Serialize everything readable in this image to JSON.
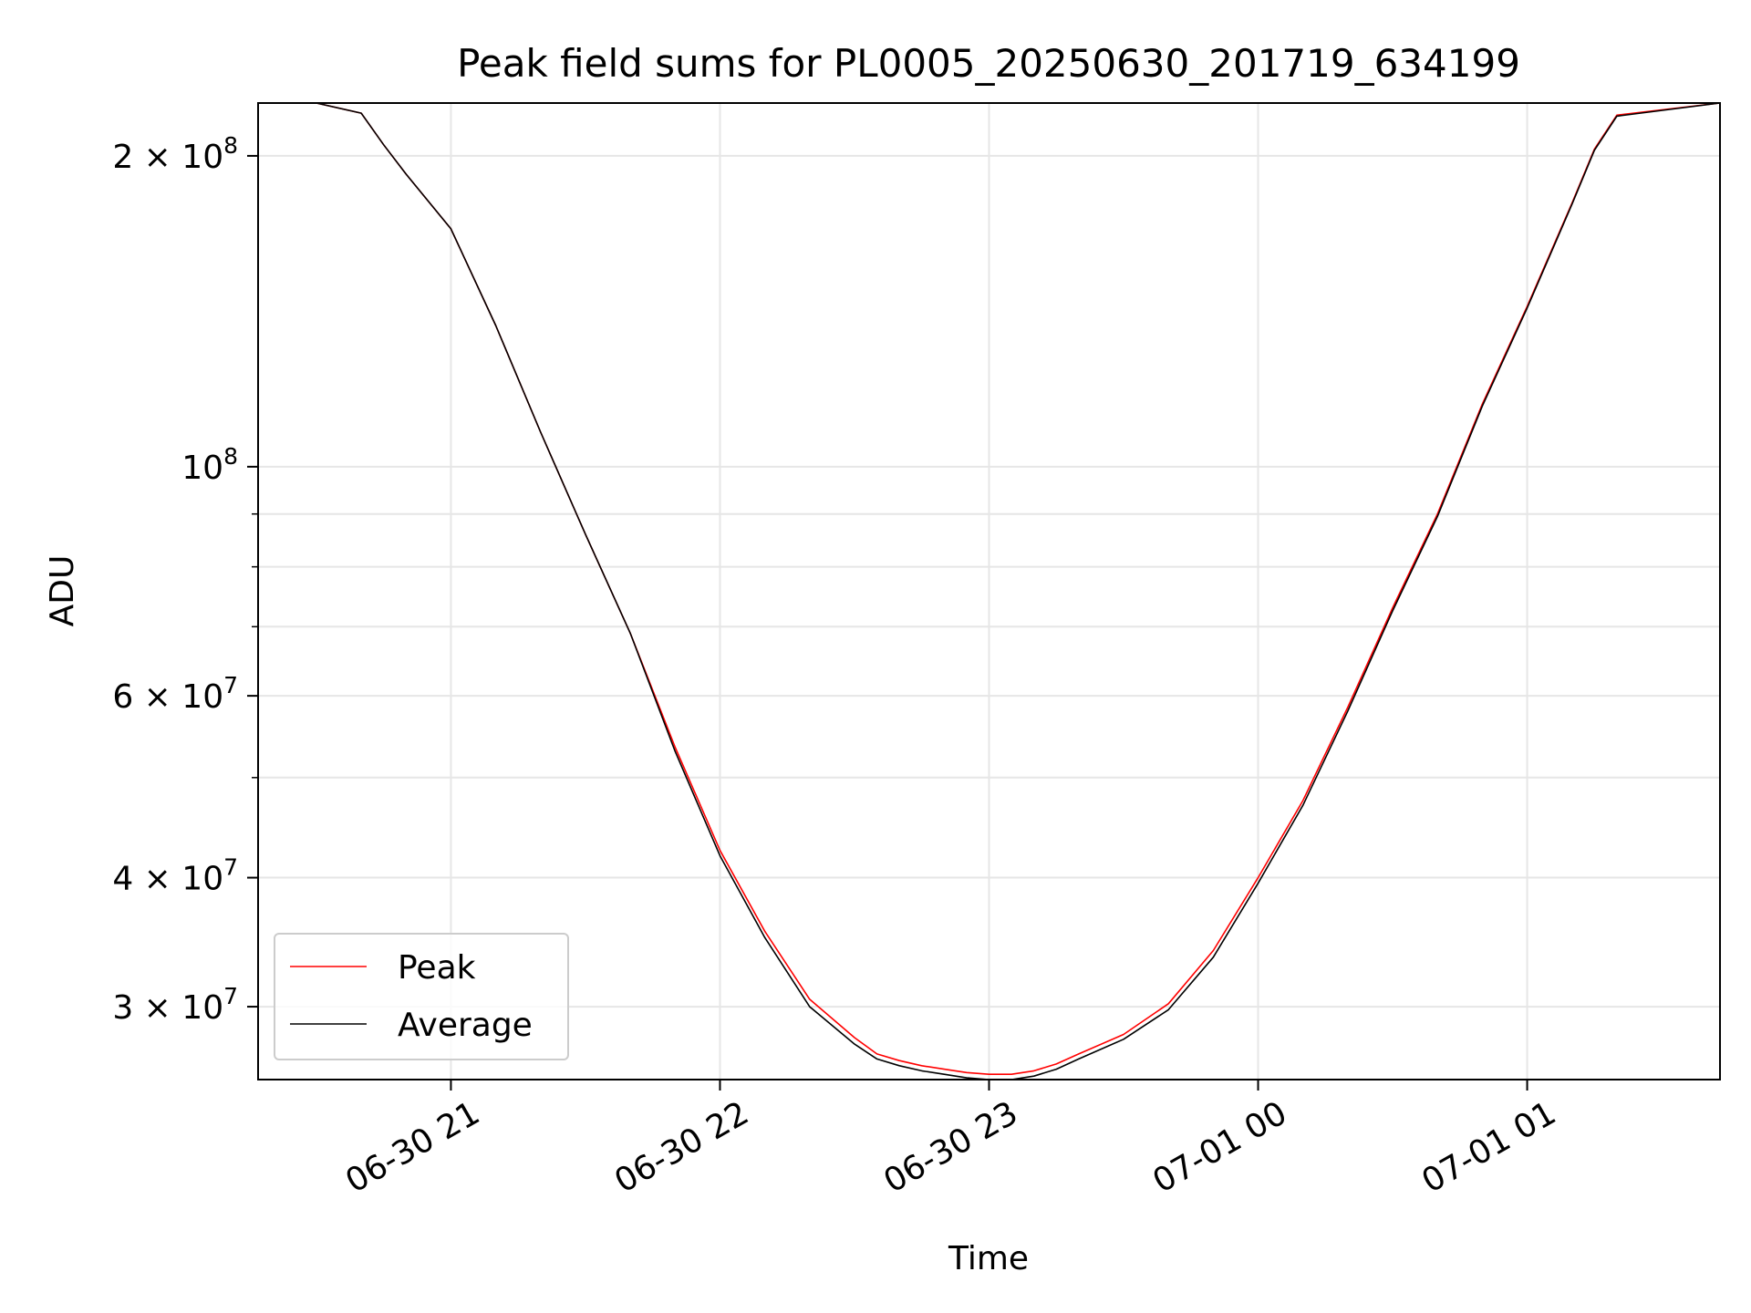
{
  "chart_data": {
    "type": "line",
    "title": "Peak field sums for PL0005_20250630_201719_634199",
    "xlabel": "Time",
    "ylabel": "ADU",
    "yscale": "log",
    "grid": true,
    "legend_position": "lower-left",
    "xlim": [
      "2025-06-30 20:17",
      "2025-07-01 01:43"
    ],
    "ylim": [
      25500000,
      225000000
    ],
    "x_ticks": [
      {
        "value": "2025-06-30 21:00",
        "label": "06-30 21"
      },
      {
        "value": "2025-06-30 22:00",
        "label": "06-30 22"
      },
      {
        "value": "2025-06-30 23:00",
        "label": "06-30 23"
      },
      {
        "value": "2025-07-01 00:00",
        "label": "07-01 00"
      },
      {
        "value": "2025-07-01 01:00",
        "label": "07-01 01"
      }
    ],
    "y_ticks": [
      {
        "value": 30000000,
        "mantissa": "3",
        "exponent": "7"
      },
      {
        "value": 40000000,
        "mantissa": "4",
        "exponent": "7"
      },
      {
        "value": 60000000,
        "mantissa": "6",
        "exponent": "7"
      },
      {
        "value": 100000000,
        "mantissa": "",
        "exponent": "8"
      },
      {
        "value": 200000000,
        "mantissa": "2",
        "exponent": "8"
      }
    ],
    "y_minor_ticks": [
      50000000,
      70000000,
      80000000,
      90000000
    ],
    "series": [
      {
        "name": "Peak",
        "color": "#ff0000",
        "x": [
          "2025-06-30 20:17",
          "2025-06-30 20:30",
          "2025-06-30 20:40",
          "2025-06-30 20:45",
          "2025-06-30 20:50",
          "2025-06-30 21:00",
          "2025-06-30 21:10",
          "2025-06-30 21:20",
          "2025-06-30 21:30",
          "2025-06-30 21:40",
          "2025-06-30 21:50",
          "2025-06-30 22:00",
          "2025-06-30 22:10",
          "2025-06-30 22:20",
          "2025-06-30 22:30",
          "2025-06-30 22:35",
          "2025-06-30 22:40",
          "2025-06-30 22:45",
          "2025-06-30 22:50",
          "2025-06-30 22:55",
          "2025-06-30 23:00",
          "2025-06-30 23:05",
          "2025-06-30 23:10",
          "2025-06-30 23:15",
          "2025-06-30 23:20",
          "2025-06-30 23:30",
          "2025-06-30 23:40",
          "2025-06-30 23:50",
          "2025-07-01 00:00",
          "2025-07-01 00:10",
          "2025-07-01 00:20",
          "2025-07-01 00:30",
          "2025-07-01 00:40",
          "2025-07-01 00:50",
          "2025-07-01 01:00",
          "2025-07-01 01:10",
          "2025-07-01 01:15",
          "2025-07-01 01:20",
          "2025-07-01 01:43"
        ],
        "y": [
          225000000,
          225000000,
          220000000,
          205000000,
          192000000,
          170000000,
          137000000,
          108000000,
          86000000,
          69000000,
          53500000,
          42500000,
          35500000,
          30500000,
          28000000,
          27000000,
          26600000,
          26300000,
          26100000,
          25900000,
          25800000,
          25800000,
          26000000,
          26400000,
          27000000,
          28200000,
          30200000,
          34000000,
          40000000,
          47500000,
          58500000,
          73000000,
          90000000,
          115000000,
          143000000,
          180000000,
          203000000,
          219000000,
          225000000
        ]
      },
      {
        "name": "Average",
        "color": "#000000",
        "x": [
          "2025-06-30 20:17",
          "2025-06-30 20:30",
          "2025-06-30 20:40",
          "2025-06-30 20:45",
          "2025-06-30 20:50",
          "2025-06-30 21:00",
          "2025-06-30 21:10",
          "2025-06-30 21:20",
          "2025-06-30 21:30",
          "2025-06-30 21:40",
          "2025-06-30 21:50",
          "2025-06-30 22:00",
          "2025-06-30 22:10",
          "2025-06-30 22:20",
          "2025-06-30 22:30",
          "2025-06-30 22:35",
          "2025-06-30 22:40",
          "2025-06-30 22:45",
          "2025-06-30 22:50",
          "2025-06-30 22:55",
          "2025-06-30 23:00",
          "2025-06-30 23:05",
          "2025-06-30 23:10",
          "2025-06-30 23:15",
          "2025-06-30 23:20",
          "2025-06-30 23:30",
          "2025-06-30 23:40",
          "2025-06-30 23:50",
          "2025-07-01 00:00",
          "2025-07-01 00:10",
          "2025-07-01 00:20",
          "2025-07-01 00:30",
          "2025-07-01 00:40",
          "2025-07-01 00:50",
          "2025-07-01 01:00",
          "2025-07-01 01:10",
          "2025-07-01 01:15",
          "2025-07-01 01:20",
          "2025-07-01 01:43"
        ],
        "y": [
          225000000,
          225000000,
          220000000,
          205000000,
          192000000,
          170000000,
          137000000,
          108000000,
          86000000,
          69000000,
          53000000,
          42000000,
          35000000,
          30000000,
          27600000,
          26700000,
          26300000,
          26000000,
          25800000,
          25600000,
          25500000,
          25500000,
          25700000,
          26100000,
          26700000,
          27900000,
          29800000,
          33500000,
          39500000,
          47000000,
          58000000,
          72500000,
          89500000,
          114500000,
          142500000,
          179500000,
          202500000,
          218500000,
          225000000
        ]
      }
    ]
  }
}
